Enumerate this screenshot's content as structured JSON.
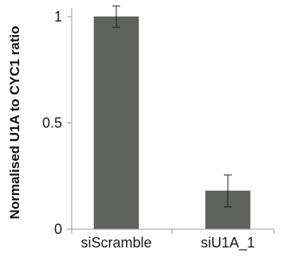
{
  "chart_data": {
    "type": "bar",
    "categories": [
      "siScramble",
      "siU1A_1"
    ],
    "values": [
      1.0,
      0.18
    ],
    "error": [
      0.05,
      0.075
    ],
    "ylabel": "Normalised U1A to CYC1 ratio",
    "xlabel": "",
    "ylim": [
      0,
      1.05
    ],
    "yticks": [
      0,
      0.5,
      1
    ],
    "ytick_labels": [
      "0",
      "0.5",
      "1"
    ],
    "grid": false,
    "colors": {
      "bar": "#5f625f",
      "bar_edge": "#4a4d4a",
      "axis": "#999999",
      "error": "#222222"
    }
  }
}
